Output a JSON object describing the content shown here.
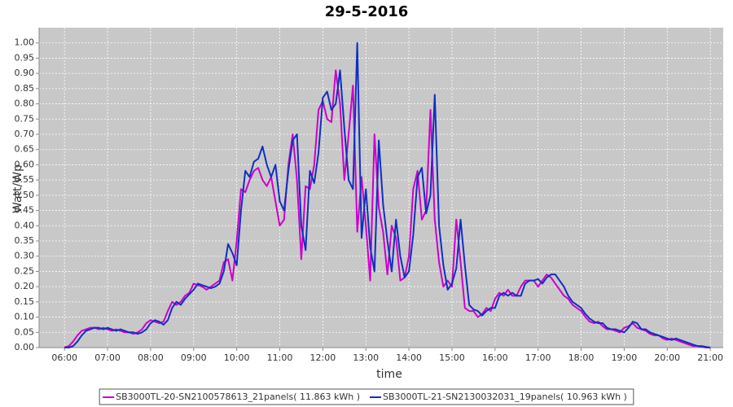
{
  "chart_data": {
    "type": "line",
    "title": "29-5-2016",
    "x_label": "time",
    "y_label": "Watt/Wp",
    "x": [
      6.0,
      6.1,
      6.2,
      6.3,
      6.4,
      6.5,
      6.6,
      6.7,
      6.8,
      6.9,
      7.0,
      7.1,
      7.2,
      7.3,
      7.4,
      7.5,
      7.6,
      7.7,
      7.8,
      7.9,
      8.0,
      8.1,
      8.2,
      8.3,
      8.4,
      8.5,
      8.6,
      8.7,
      8.8,
      8.9,
      9.0,
      9.1,
      9.2,
      9.3,
      9.4,
      9.5,
      9.6,
      9.7,
      9.8,
      9.9,
      10.0,
      10.1,
      10.2,
      10.3,
      10.4,
      10.5,
      10.6,
      10.7,
      10.8,
      10.9,
      11.0,
      11.1,
      11.2,
      11.3,
      11.4,
      11.5,
      11.6,
      11.7,
      11.8,
      11.9,
      12.0,
      12.1,
      12.2,
      12.3,
      12.4,
      12.5,
      12.6,
      12.7,
      12.8,
      12.9,
      13.0,
      13.1,
      13.2,
      13.3,
      13.4,
      13.5,
      13.6,
      13.7,
      13.8,
      13.9,
      14.0,
      14.1,
      14.2,
      14.3,
      14.4,
      14.5,
      14.6,
      14.7,
      14.8,
      14.9,
      15.0,
      15.1,
      15.2,
      15.3,
      15.4,
      15.5,
      15.6,
      15.7,
      15.8,
      15.9,
      16.0,
      16.1,
      16.2,
      16.3,
      16.4,
      16.5,
      16.6,
      16.7,
      16.8,
      16.9,
      17.0,
      17.1,
      17.2,
      17.3,
      17.4,
      17.5,
      17.6,
      17.7,
      17.8,
      17.9,
      18.0,
      18.1,
      18.2,
      18.3,
      18.4,
      18.5,
      18.6,
      18.7,
      18.8,
      18.9,
      19.0,
      19.1,
      19.2,
      19.3,
      19.4,
      19.5,
      19.6,
      19.7,
      19.8,
      19.9,
      20.0,
      20.1,
      20.2,
      20.3,
      20.4,
      20.5,
      20.6,
      20.7,
      20.8,
      20.9,
      21.0
    ],
    "series": [
      {
        "name": "SB3000TL-20-SN2100578613_21panels( 11.863 kWh )",
        "color": "#cc00cc",
        "values": [
          0,
          0.005,
          0.02,
          0.04,
          0.055,
          0.06,
          0.065,
          0.065,
          0.06,
          0.065,
          0.06,
          0.055,
          0.06,
          0.055,
          0.05,
          0.05,
          0.045,
          0.05,
          0.06,
          0.08,
          0.09,
          0.085,
          0.08,
          0.085,
          0.12,
          0.15,
          0.14,
          0.15,
          0.17,
          0.18,
          0.21,
          0.205,
          0.2,
          0.19,
          0.2,
          0.21,
          0.22,
          0.28,
          0.29,
          0.22,
          0.35,
          0.52,
          0.51,
          0.55,
          0.58,
          0.59,
          0.55,
          0.53,
          0.56,
          0.48,
          0.4,
          0.42,
          0.6,
          0.7,
          0.55,
          0.29,
          0.53,
          0.52,
          0.6,
          0.78,
          0.81,
          0.75,
          0.74,
          0.91,
          0.8,
          0.55,
          0.7,
          0.86,
          0.38,
          0.56,
          0.4,
          0.22,
          0.7,
          0.46,
          0.38,
          0.24,
          0.4,
          0.36,
          0.22,
          0.23,
          0.3,
          0.52,
          0.58,
          0.42,
          0.45,
          0.78,
          0.42,
          0.28,
          0.2,
          0.22,
          0.2,
          0.42,
          0.28,
          0.13,
          0.12,
          0.12,
          0.1,
          0.11,
          0.13,
          0.12,
          0.16,
          0.18,
          0.17,
          0.19,
          0.17,
          0.17,
          0.2,
          0.22,
          0.22,
          0.22,
          0.2,
          0.22,
          0.24,
          0.23,
          0.21,
          0.19,
          0.17,
          0.16,
          0.14,
          0.13,
          0.12,
          0.1,
          0.085,
          0.08,
          0.085,
          0.07,
          0.06,
          0.06,
          0.055,
          0.05,
          0.065,
          0.07,
          0.08,
          0.065,
          0.06,
          0.055,
          0.045,
          0.04,
          0.04,
          0.03,
          0.025,
          0.03,
          0.025,
          0.02,
          0.015,
          0.01,
          0.005,
          0.005,
          0.002,
          0,
          0
        ]
      },
      {
        "name": "SB3000TL-21-SN2130032031_19panels( 10.963 kWh )",
        "color": "#1030c0",
        "values": [
          0,
          0,
          0.005,
          0.02,
          0.04,
          0.055,
          0.06,
          0.065,
          0.065,
          0.06,
          0.065,
          0.06,
          0.055,
          0.06,
          0.055,
          0.05,
          0.05,
          0.045,
          0.05,
          0.06,
          0.08,
          0.09,
          0.085,
          0.075,
          0.09,
          0.13,
          0.15,
          0.14,
          0.16,
          0.175,
          0.19,
          0.21,
          0.205,
          0.2,
          0.195,
          0.2,
          0.21,
          0.25,
          0.34,
          0.31,
          0.27,
          0.45,
          0.58,
          0.56,
          0.61,
          0.62,
          0.66,
          0.6,
          0.56,
          0.6,
          0.48,
          0.45,
          0.58,
          0.68,
          0.7,
          0.4,
          0.32,
          0.58,
          0.54,
          0.64,
          0.82,
          0.84,
          0.78,
          0.8,
          0.91,
          0.72,
          0.55,
          0.52,
          1.0,
          0.36,
          0.52,
          0.33,
          0.25,
          0.68,
          0.47,
          0.35,
          0.25,
          0.42,
          0.3,
          0.23,
          0.25,
          0.37,
          0.56,
          0.59,
          0.44,
          0.5,
          0.83,
          0.4,
          0.27,
          0.19,
          0.21,
          0.26,
          0.42,
          0.27,
          0.14,
          0.125,
          0.12,
          0.105,
          0.12,
          0.13,
          0.13,
          0.17,
          0.18,
          0.17,
          0.18,
          0.17,
          0.17,
          0.21,
          0.22,
          0.22,
          0.225,
          0.21,
          0.23,
          0.24,
          0.24,
          0.22,
          0.2,
          0.17,
          0.15,
          0.14,
          0.13,
          0.11,
          0.095,
          0.085,
          0.08,
          0.08,
          0.065,
          0.06,
          0.06,
          0.055,
          0.05,
          0.065,
          0.085,
          0.08,
          0.06,
          0.06,
          0.05,
          0.045,
          0.04,
          0.035,
          0.03,
          0.025,
          0.03,
          0.025,
          0.02,
          0.015,
          0.01,
          0.005,
          0.005,
          0.002,
          0
        ]
      }
    ],
    "xlim": [
      5.41,
      21.3
    ],
    "xticks": [
      {
        "value": 6,
        "label": "06:00"
      },
      {
        "value": 7,
        "label": "07:00"
      },
      {
        "value": 8,
        "label": "08:00"
      },
      {
        "value": 9,
        "label": "09:00"
      },
      {
        "value": 10,
        "label": "10:00"
      },
      {
        "value": 11,
        "label": "11:00"
      },
      {
        "value": 12,
        "label": "12:00"
      },
      {
        "value": 13,
        "label": "13:00"
      },
      {
        "value": 14,
        "label": "14:00"
      },
      {
        "value": 15,
        "label": "15:00"
      },
      {
        "value": 16,
        "label": "16:00"
      },
      {
        "value": 17,
        "label": "17:00"
      },
      {
        "value": 18,
        "label": "18:00"
      },
      {
        "value": 19,
        "label": "19:00"
      },
      {
        "value": 20,
        "label": "20:00"
      },
      {
        "value": 21,
        "label": "21:00"
      }
    ],
    "ylim": [
      0,
      1.05
    ],
    "yticks": [
      {
        "value": 0,
        "label": "0.00"
      },
      {
        "value": 0.05,
        "label": "0.05"
      },
      {
        "value": 0.1,
        "label": "0.10"
      },
      {
        "value": 0.15,
        "label": "0.15"
      },
      {
        "value": 0.2,
        "label": "0.20"
      },
      {
        "value": 0.25,
        "label": "0.25"
      },
      {
        "value": 0.3,
        "label": "0.30"
      },
      {
        "value": 0.35,
        "label": "0.35"
      },
      {
        "value": 0.4,
        "label": "0.40"
      },
      {
        "value": 0.45,
        "label": "0.45"
      },
      {
        "value": 0.5,
        "label": "0.50"
      },
      {
        "value": 0.55,
        "label": "0.55"
      },
      {
        "value": 0.6,
        "label": "0.60"
      },
      {
        "value": 0.65,
        "label": "0.65"
      },
      {
        "value": 0.7,
        "label": "0.70"
      },
      {
        "value": 0.75,
        "label": "0.75"
      },
      {
        "value": 0.8,
        "label": "0.80"
      },
      {
        "value": 0.85,
        "label": "0.85"
      },
      {
        "value": 0.9,
        "label": "0.90"
      },
      {
        "value": 0.95,
        "label": "0.95"
      },
      {
        "value": 1.0,
        "label": "1.00"
      }
    ],
    "grid": true
  }
}
